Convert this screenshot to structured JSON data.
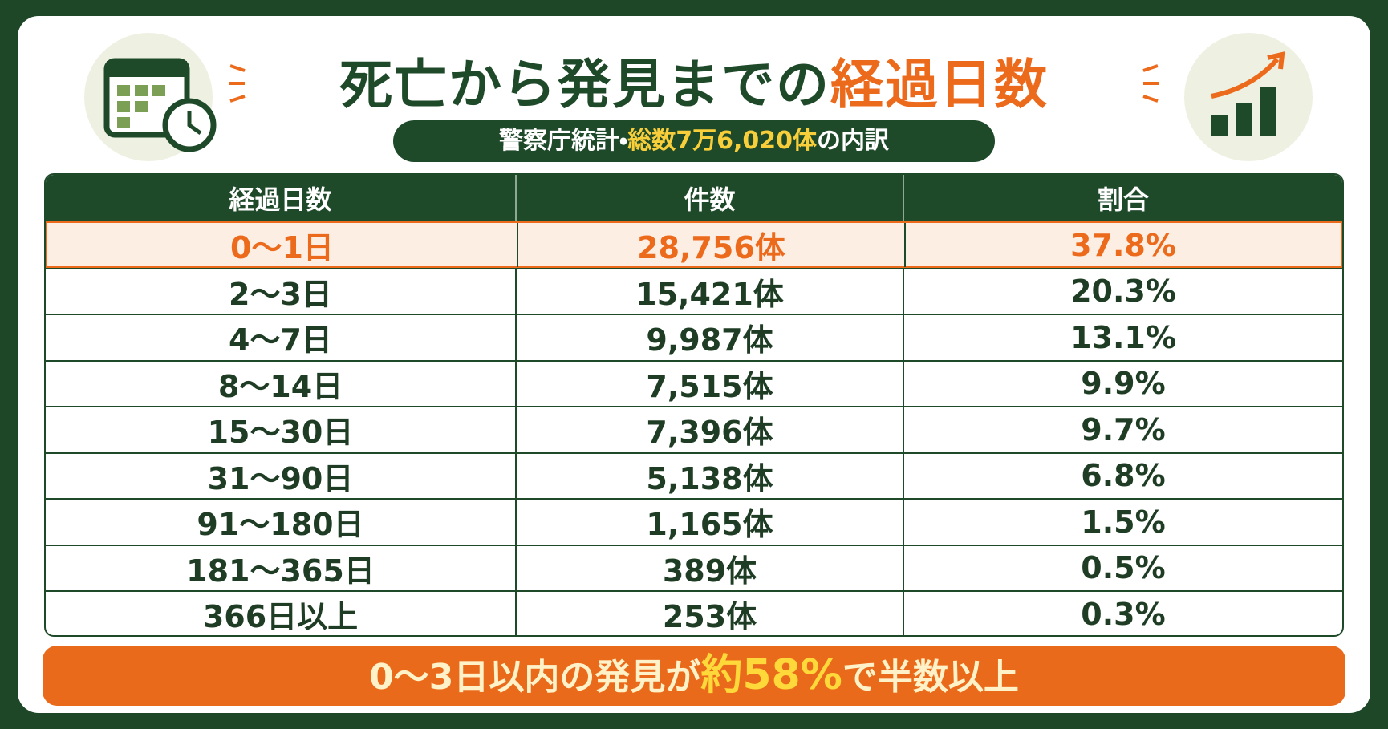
{
  "header": {
    "title_main": "死亡から発見までの",
    "title_accent": "経過日数",
    "subtitle_main": "警察庁統計・",
    "subtitle_accent": "総数7万6,020体",
    "subtitle_end": "の内訳"
  },
  "table": {
    "columns": [
      "経過日数",
      "件数",
      "割合"
    ],
    "rows": [
      [
        "0～1日",
        "28,756体",
        "37.8%"
      ],
      [
        "2～3日",
        "15,421体",
        "20.3%"
      ],
      [
        "4～7日",
        "9,987体",
        "13.1%"
      ],
      [
        "8～14日",
        "7,515体",
        "9.9%"
      ],
      [
        "15～30日",
        "7,396体",
        "9.7%"
      ],
      [
        "31～90日",
        "5,138体",
        "6.8%"
      ],
      [
        "91～180日",
        "1,165体",
        "1.5%"
      ],
      [
        "181～365日",
        "389体",
        "0.5%"
      ],
      [
        "366日以上",
        "253体",
        "0.3%"
      ]
    ]
  },
  "footer": {
    "lead": "0～3日以内の発見が",
    "accent": "約58%",
    "tail": "で半数以上"
  }
}
